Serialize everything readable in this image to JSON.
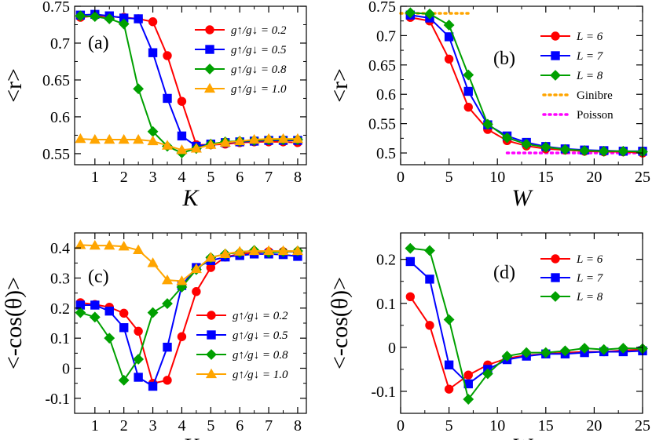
{
  "chart_data": [
    {
      "panel": "(a)",
      "type": "line",
      "xlabel": "K",
      "ylabel": "<r>",
      "xlim": [
        0.3,
        8.3
      ],
      "ylim": [
        0.535,
        0.75
      ],
      "xticks": [
        1,
        2,
        3,
        4,
        5,
        6,
        7,
        8
      ],
      "yticks": [
        0.55,
        0.6,
        0.65,
        0.7,
        0.75
      ],
      "ytick_labels": [
        "0.55",
        "0.6",
        "0.65",
        "0.7",
        "0.75"
      ],
      "legend_position": "top-right",
      "series": [
        {
          "name": "g↑/g↓ = 0.2",
          "color": "#ff0000",
          "marker": "circle",
          "x": [
            0.5,
            1,
            1.5,
            2,
            2.5,
            3,
            3.5,
            4,
            4.5,
            5,
            5.5,
            6,
            6.5,
            7,
            7.5,
            8
          ],
          "y": [
            0.735,
            0.737,
            0.736,
            0.735,
            0.733,
            0.729,
            0.683,
            0.621,
            0.562,
            0.562,
            0.563,
            0.565,
            0.566,
            0.566,
            0.566,
            0.565
          ]
        },
        {
          "name": "g↑/g↓ = 0.5",
          "color": "#0000ff",
          "marker": "square",
          "x": [
            0.5,
            1,
            1.5,
            2,
            2.5,
            3,
            3.5,
            4,
            4.5,
            5,
            5.5,
            6,
            6.5,
            7,
            7.5,
            8
          ],
          "y": [
            0.738,
            0.739,
            0.737,
            0.734,
            0.733,
            0.687,
            0.625,
            0.574,
            0.56,
            0.563,
            0.565,
            0.566,
            0.567,
            0.568,
            0.568,
            0.568
          ]
        },
        {
          "name": "g↑/g↓ = 0.8",
          "color": "#00a000",
          "marker": "diamond",
          "x": [
            0.5,
            1,
            1.5,
            2,
            2.5,
            3,
            3.5,
            4,
            4.5,
            5,
            5.5,
            6,
            6.5,
            7,
            7.5,
            8
          ],
          "y": [
            0.737,
            0.736,
            0.733,
            0.726,
            0.638,
            0.58,
            0.56,
            0.551,
            0.557,
            0.563,
            0.566,
            0.567,
            0.568,
            0.569,
            0.569,
            0.569
          ]
        },
        {
          "name": "g↑/g↓ = 1.0",
          "color": "#ffa500",
          "marker": "triangle",
          "x": [
            0.5,
            1,
            1.5,
            2,
            2.5,
            3,
            3.5,
            4,
            4.5,
            5,
            5.5,
            6,
            6.5,
            7,
            7.5,
            8
          ],
          "y": [
            0.57,
            0.569,
            0.569,
            0.569,
            0.569,
            0.567,
            0.561,
            0.555,
            0.557,
            0.562,
            0.565,
            0.567,
            0.569,
            0.57,
            0.57,
            0.57
          ]
        }
      ]
    },
    {
      "panel": "(b)",
      "type": "line",
      "xlabel": "W",
      "ylabel": "<r>",
      "xlim": [
        0,
        25
      ],
      "ylim": [
        0.48,
        0.75
      ],
      "xticks": [
        0,
        5,
        10,
        15,
        20,
        25
      ],
      "yticks": [
        0.5,
        0.55,
        0.6,
        0.65,
        0.7,
        0.75
      ],
      "ytick_labels": [
        "0.5",
        "0.55",
        "0.6",
        "0.65",
        "0.7",
        "0.75"
      ],
      "legend_position": "top-right",
      "series": [
        {
          "name": "L = 6",
          "color": "#ff0000",
          "marker": "circle",
          "x": [
            1,
            3,
            5,
            7,
            9,
            11,
            13,
            15,
            17,
            19,
            21,
            23,
            25
          ],
          "y": [
            0.731,
            0.725,
            0.66,
            0.578,
            0.54,
            0.521,
            0.512,
            0.507,
            0.505,
            0.503,
            0.502,
            0.502,
            0.5
          ]
        },
        {
          "name": "L = 7",
          "color": "#0000ff",
          "marker": "square",
          "x": [
            1,
            3,
            5,
            7,
            9,
            11,
            13,
            15,
            17,
            19,
            21,
            23,
            25
          ],
          "y": [
            0.735,
            0.73,
            0.698,
            0.605,
            0.548,
            0.529,
            0.518,
            0.511,
            0.507,
            0.505,
            0.504,
            0.503,
            0.503
          ]
        },
        {
          "name": "L = 8",
          "color": "#00a000",
          "marker": "diamond",
          "x": [
            1,
            3,
            5,
            7,
            9,
            11,
            13,
            15,
            17,
            19,
            21,
            23,
            25
          ],
          "y": [
            0.739,
            0.737,
            0.718,
            0.633,
            0.549,
            0.526,
            0.515,
            0.51,
            0.506,
            0.504,
            0.503,
            0.503,
            0.502
          ]
        }
      ],
      "reference_lines": [
        {
          "name": "Ginibre",
          "color": "#ffa500",
          "style": "dotted",
          "x": [
            0,
            7
          ],
          "y": 0.738
        },
        {
          "name": "Poisson",
          "color": "#ff00ff",
          "style": "dotted",
          "x": [
            11,
            25
          ],
          "y": 0.5
        }
      ]
    },
    {
      "panel": "(c)",
      "type": "line",
      "xlabel": "K",
      "ylabel": "<-cos(θ)>",
      "xlim": [
        0.3,
        8.3
      ],
      "ylim": [
        -0.15,
        0.45
      ],
      "xticks": [
        1,
        2,
        3,
        4,
        5,
        6,
        7,
        8
      ],
      "yticks": [
        -0.1,
        0,
        0.1,
        0.2,
        0.3,
        0.4
      ],
      "ytick_labels": [
        "-0.1",
        "0",
        "0.1",
        "0.2",
        "0.3",
        "0.4"
      ],
      "legend_position": "bottom-right",
      "series": [
        {
          "name": "g↑/g↓ = 0.2",
          "color": "#ff0000",
          "marker": "circle",
          "x": [
            0.5,
            1,
            1.5,
            2,
            2.5,
            3,
            3.5,
            4,
            4.5,
            5,
            5.5,
            6,
            6.5,
            7,
            7.5,
            8
          ],
          "y": [
            0.218,
            0.212,
            0.203,
            0.183,
            0.123,
            -0.05,
            -0.04,
            0.105,
            0.255,
            0.335,
            0.37,
            0.38,
            0.385,
            0.388,
            0.388,
            0.388
          ]
        },
        {
          "name": "g↑/g↓ = 0.5",
          "color": "#0000ff",
          "marker": "square",
          "x": [
            0.5,
            1,
            1.5,
            2,
            2.5,
            3,
            3.5,
            4,
            4.5,
            5,
            5.5,
            6,
            6.5,
            7,
            7.5,
            8
          ],
          "y": [
            0.21,
            0.21,
            0.19,
            0.135,
            -0.03,
            -0.06,
            0.07,
            0.275,
            0.335,
            0.358,
            0.37,
            0.375,
            0.38,
            0.38,
            0.378,
            0.372
          ]
        },
        {
          "name": "g↑/g↓ = 0.8",
          "color": "#00a000",
          "marker": "diamond",
          "x": [
            0.5,
            1,
            1.5,
            2,
            2.5,
            3,
            3.5,
            4,
            4.5,
            5,
            5.5,
            6,
            6.5,
            7,
            7.5,
            8
          ],
          "y": [
            0.185,
            0.17,
            0.1,
            -0.04,
            0.03,
            0.185,
            0.215,
            0.27,
            0.328,
            0.368,
            0.38,
            0.385,
            0.392,
            0.385,
            0.388,
            0.39
          ]
        },
        {
          "name": "g↑/g↓ = 1.0",
          "color": "#ffa500",
          "marker": "triangle",
          "x": [
            0.5,
            1,
            1.5,
            2,
            2.5,
            3,
            3.5,
            4,
            4.5,
            5,
            5.5,
            6,
            6.5,
            7,
            7.5,
            8
          ],
          "y": [
            0.41,
            0.408,
            0.408,
            0.405,
            0.393,
            0.35,
            0.293,
            0.29,
            0.33,
            0.368,
            0.38,
            0.388,
            0.39,
            0.39,
            0.39,
            0.39
          ]
        }
      ]
    },
    {
      "panel": "(d)",
      "type": "line",
      "xlabel": "W",
      "ylabel": "<-cos(θ)>",
      "xlim": [
        0,
        25
      ],
      "ylim": [
        -0.15,
        0.26
      ],
      "xticks": [
        0,
        5,
        10,
        15,
        20,
        25
      ],
      "yticks": [
        -0.1,
        0,
        0.1,
        0.2
      ],
      "ytick_labels": [
        "-0.1",
        "0",
        "0.1",
        "0.2"
      ],
      "legend_position": "top-right",
      "series": [
        {
          "name": "L = 6",
          "color": "#ff0000",
          "marker": "circle",
          "x": [
            1,
            3,
            5,
            7,
            9,
            11,
            13,
            15,
            17,
            19,
            21,
            23,
            25
          ],
          "y": [
            0.115,
            0.05,
            -0.095,
            -0.063,
            -0.04,
            -0.025,
            -0.018,
            -0.015,
            -0.012,
            -0.01,
            -0.01,
            -0.007,
            -0.005
          ]
        },
        {
          "name": "L = 7",
          "color": "#0000ff",
          "marker": "square",
          "x": [
            1,
            3,
            5,
            7,
            9,
            11,
            13,
            15,
            17,
            19,
            21,
            23,
            25
          ],
          "y": [
            0.195,
            0.155,
            -0.04,
            -0.083,
            -0.05,
            -0.028,
            -0.02,
            -0.015,
            -0.015,
            -0.012,
            -0.01,
            -0.01,
            -0.008
          ]
        },
        {
          "name": "L = 8",
          "color": "#00a000",
          "marker": "diamond",
          "x": [
            1,
            3,
            5,
            7,
            9,
            11,
            13,
            15,
            17,
            19,
            21,
            23,
            25
          ],
          "y": [
            0.225,
            0.22,
            0.063,
            -0.118,
            -0.06,
            -0.02,
            -0.012,
            -0.012,
            -0.008,
            -0.002,
            -0.005,
            -0.002,
            -0.003
          ]
        }
      ]
    }
  ]
}
